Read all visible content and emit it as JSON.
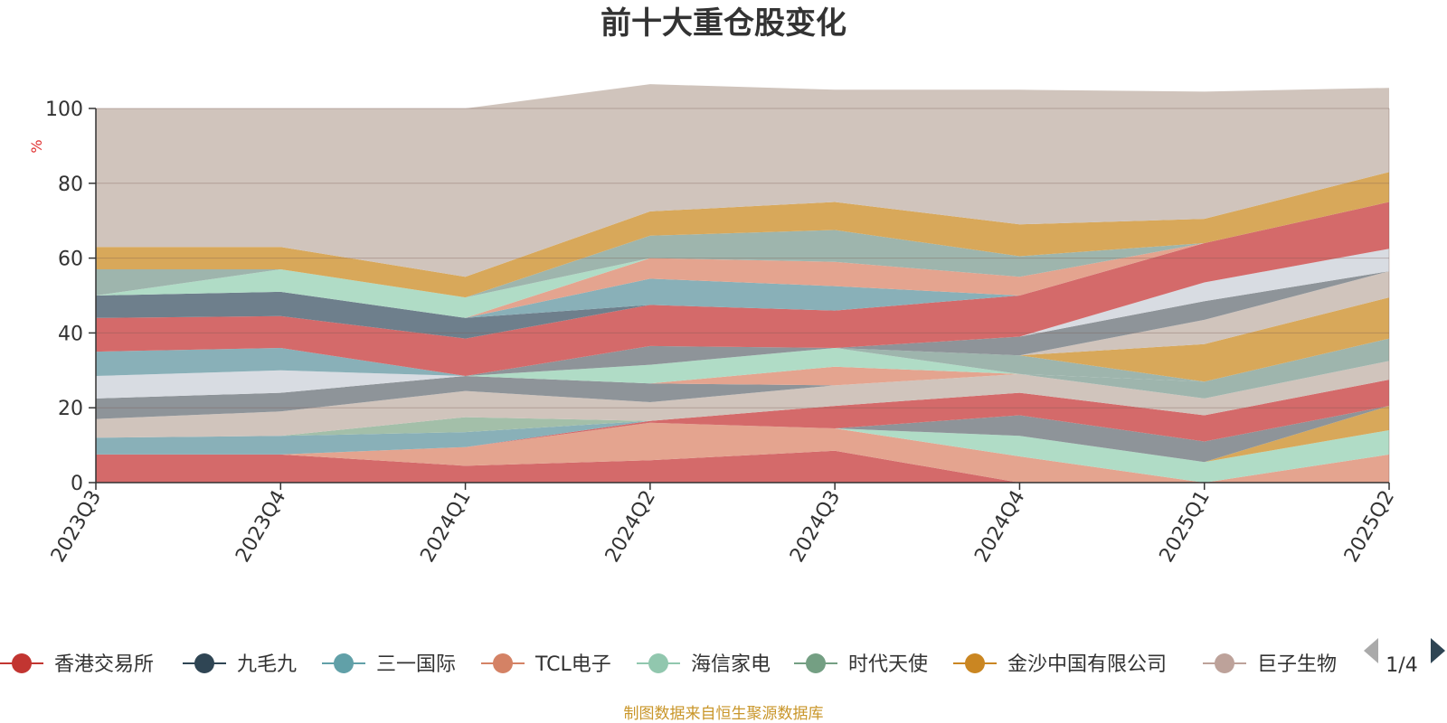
{
  "chart_data": {
    "type": "area",
    "stacked": true,
    "title": "前十大重仓股变化",
    "ylabel": "%",
    "ylim": [
      0,
      100
    ],
    "yticks": [
      "0",
      "20",
      "40",
      "60",
      "80",
      "100"
    ],
    "categories": [
      "2023Q3",
      "2023Q4",
      "2024Q1",
      "2024Q2",
      "2024Q3",
      "2024Q4",
      "2025Q1",
      "2025Q2"
    ],
    "grid": true,
    "legend_position": "bottom",
    "legend_page": "1/4",
    "source": "制图数据来自恒生聚源数据库",
    "series": [
      {
        "color": "#d46a6a",
        "values": [
          7.5,
          7.5,
          4.5,
          6,
          8.5,
          0,
          0,
          0
        ]
      },
      {
        "color": "#e4a48f",
        "values": [
          0,
          0,
          5,
          10,
          6,
          7,
          0,
          7.5
        ]
      },
      {
        "color": "#b0dcc6",
        "values": [
          0,
          0,
          0,
          0,
          0,
          5.5,
          5.5,
          6.5
        ]
      },
      {
        "color": "#d8a85a",
        "values": [
          0,
          0,
          0,
          0,
          0,
          0,
          0,
          6.5
        ]
      },
      {
        "color": "#8e9499",
        "values": [
          0,
          0,
          0,
          0,
          0,
          5.5,
          5.5,
          0
        ]
      },
      {
        "color": "#d46a6a",
        "values": [
          0,
          0,
          0,
          0.5,
          6,
          6,
          7,
          7
        ]
      },
      {
        "color": "#89b0b8",
        "values": [
          4.5,
          5,
          4,
          0,
          0,
          0,
          0,
          0
        ]
      },
      {
        "color": "#6e7f8c",
        "values": [
          0,
          0,
          0,
          0,
          0,
          0,
          0,
          0
        ]
      },
      {
        "color": "#a3bfa9",
        "values": [
          0,
          0,
          4,
          0,
          0,
          0,
          0,
          0
        ]
      },
      {
        "color": "#d0c4bc",
        "values": [
          5,
          6.5,
          7,
          5,
          5.5,
          5,
          4.5,
          5
        ]
      },
      {
        "color": "#9eb5ad",
        "values": [
          0,
          0,
          0,
          0,
          0,
          0,
          4.5,
          6
        ]
      },
      {
        "color": "#8e9499",
        "values": [
          5.5,
          5,
          4,
          5,
          0,
          0,
          0,
          0
        ]
      },
      {
        "color": "#e4a48f",
        "values": [
          0,
          0,
          0,
          0,
          5,
          0,
          0,
          0
        ]
      },
      {
        "color": "#b0dcc6",
        "values": [
          0,
          0,
          0,
          5,
          5,
          0,
          0,
          0
        ]
      },
      {
        "color": "#9eb5ad",
        "values": [
          0,
          0,
          0,
          0,
          0,
          5,
          0,
          0
        ]
      },
      {
        "color": "#d8a85a",
        "values": [
          0,
          0,
          0,
          0,
          0,
          0,
          10,
          11
        ]
      },
      {
        "color": "#d0c4bc",
        "values": [
          0,
          0,
          0,
          0,
          0,
          0,
          6.5,
          7
        ]
      },
      {
        "color": "#d8dce2",
        "values": [
          6,
          6,
          0,
          0,
          0,
          0,
          0,
          0
        ]
      },
      {
        "color": "#8e9499",
        "values": [
          0,
          0,
          0,
          5,
          0,
          5,
          5,
          0
        ]
      },
      {
        "color": "#d8dce2",
        "values": [
          0,
          0,
          0,
          0,
          0,
          0,
          5,
          6
        ]
      },
      {
        "color": "#89b0b8",
        "values": [
          6.5,
          6,
          0,
          0,
          0,
          0,
          0,
          0
        ]
      },
      {
        "color": "#d46a6a",
        "values": [
          9,
          8.5,
          10,
          11,
          10,
          11,
          10.5,
          12.5
        ]
      },
      {
        "color": "#6e7f8c",
        "values": [
          6,
          6.5,
          5.5,
          0,
          0,
          0,
          0,
          0
        ]
      },
      {
        "color": "#89b0b8",
        "values": [
          0,
          0,
          0,
          7,
          6.5,
          0,
          0,
          0
        ]
      },
      {
        "color": "#e4a48f",
        "values": [
          0,
          0,
          0,
          5.5,
          6.5,
          5,
          0,
          0
        ]
      },
      {
        "color": "#b0dcc6",
        "values": [
          0,
          6,
          5.5,
          0,
          0,
          0,
          0,
          0
        ]
      },
      {
        "color": "#9eb5ad",
        "values": [
          7,
          0,
          0,
          6,
          8.5,
          5.5,
          0,
          0
        ]
      },
      {
        "color": "#d8a85a",
        "values": [
          6,
          6,
          5.5,
          6.5,
          7.5,
          8.5,
          6.5,
          8
        ]
      },
      {
        "color": "#d0c4bc",
        "values": [
          37,
          37,
          45,
          34,
          30,
          36,
          34,
          22.5
        ]
      }
    ],
    "legend": [
      {
        "label": "香港交易所",
        "color": "#c23531"
      },
      {
        "label": "九毛九",
        "color": "#2f4554"
      },
      {
        "label": "三一国际",
        "color": "#61a0a8"
      },
      {
        "label": "TCL电子",
        "color": "#d48265"
      },
      {
        "label": "海信家电",
        "color": "#91c7ae"
      },
      {
        "label": "时代天使",
        "color": "#749f83"
      },
      {
        "label": "金沙中国有限公司",
        "color": "#ca8622"
      },
      {
        "label": "巨子生物",
        "color": "#bda29a"
      }
    ]
  }
}
